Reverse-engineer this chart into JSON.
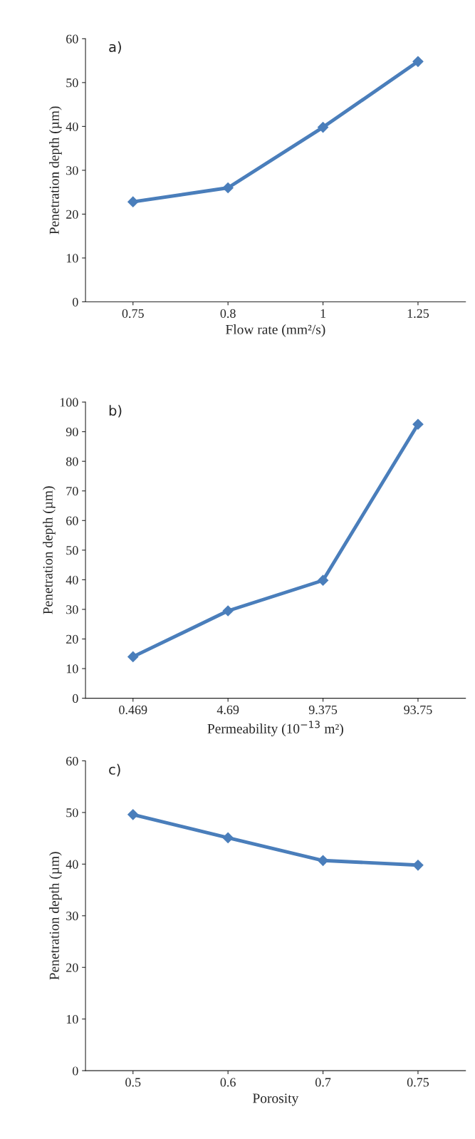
{
  "chart_data": [
    {
      "type": "line",
      "title": "a)",
      "categories": [
        "0.75",
        "0.8",
        "1",
        "1.25"
      ],
      "xlabel": "Flow rate (mm²/s)",
      "ylabel": "Penetration depth (µm)",
      "ylim": [
        0,
        60
      ],
      "yticks": [
        0,
        10,
        20,
        30,
        40,
        50,
        60
      ],
      "marker": "diamond",
      "line_style": "solid",
      "series": [
        {
          "color": "#4a7ebb",
          "values": [
            22.8,
            26,
            39.8,
            54.8
          ]
        }
      ]
    },
    {
      "type": "line",
      "title": "b)",
      "categories": [
        "0.469",
        "4.69",
        "9.375",
        "93.75"
      ],
      "xlabel": "Permeability (10$^{−13}$ m²)",
      "ylabel": "Penetration depth (µm)",
      "ylim": [
        0,
        100
      ],
      "yticks": [
        0,
        10,
        20,
        30,
        40,
        50,
        60,
        70,
        80,
        90,
        100
      ],
      "marker": "diamond",
      "line_style": "solid",
      "series": [
        {
          "color": "#4a7ebb",
          "values": [
            14,
            29.5,
            39.8,
            92.5
          ]
        }
      ]
    },
    {
      "type": "line",
      "title": "c)",
      "categories": [
        "0.5",
        "0.6",
        "0.7",
        "0.75"
      ],
      "xlabel": "Porosity",
      "ylabel": "Penetration depth (µm)",
      "ylim": [
        0,
        60
      ],
      "yticks": [
        0,
        10,
        20,
        30,
        40,
        50,
        60
      ],
      "marker": "diamond",
      "line_style": "solid",
      "series": [
        {
          "color": "#4a7ebb",
          "values": [
            49.6,
            45.1,
            40.7,
            39.8
          ]
        }
      ]
    }
  ]
}
